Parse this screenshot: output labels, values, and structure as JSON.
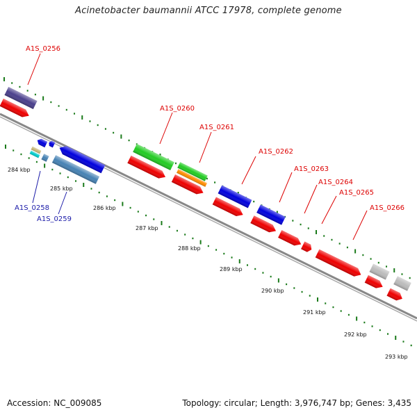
{
  "title": "Acinetobacter baumannii ATCC 17978, complete genome",
  "footer": {
    "accession": "Accession: NC_009085",
    "stats": "Topology: circular; Length: 3,976,747 bp; Genes: 3,435"
  },
  "colors": {
    "upper_label": "#dd0000",
    "lower_label": "#1a1aa8",
    "backbone": "#808080",
    "tick": "#1a7a1a"
  },
  "upper_labels": [
    "A1S_0256",
    "A1S_0260",
    "A1S_0261",
    "A1S_0262",
    "A1S_0263",
    "A1S_0264",
    "A1S_0265",
    "A1S_0266"
  ],
  "lower_labels": [
    "A1S_0258",
    "A1S_0259"
  ],
  "scale_labels": [
    "284 kbp",
    "285 kbp",
    "286 kbp",
    "287 kbp",
    "288 kbp",
    "289 kbp",
    "290 kbp",
    "291 kbp",
    "292 kbp",
    "293 kbp"
  ]
}
